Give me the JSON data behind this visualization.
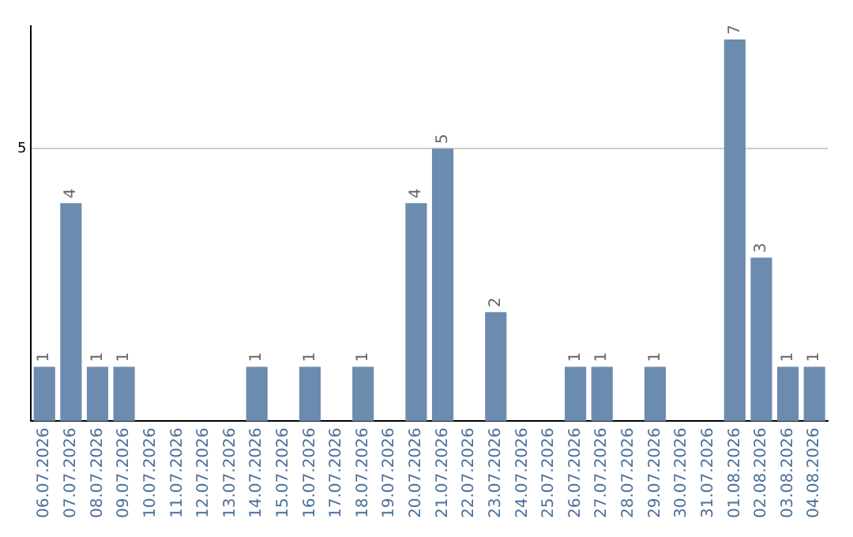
{
  "chart_data": {
    "type": "bar",
    "categories": [
      "06.07.2026",
      "07.07.2026",
      "08.07.2026",
      "09.07.2026",
      "10.07.2026",
      "11.07.2026",
      "12.07.2026",
      "13.07.2026",
      "14.07.2026",
      "15.07.2026",
      "16.07.2026",
      "17.07.2026",
      "18.07.2026",
      "19.07.2026",
      "20.07.2026",
      "21.07.2026",
      "22.07.2026",
      "23.07.2026",
      "24.07.2026",
      "25.07.2026",
      "26.07.2026",
      "27.07.2026",
      "28.07.2026",
      "29.07.2026",
      "30.07.2026",
      "31.07.2026",
      "01.08.2026",
      "02.08.2026",
      "03.08.2026",
      "04.08.2026"
    ],
    "values": [
      1,
      4,
      1,
      1,
      null,
      null,
      null,
      null,
      1,
      null,
      1,
      null,
      1,
      null,
      4,
      5,
      null,
      2,
      null,
      null,
      1,
      1,
      null,
      1,
      null,
      null,
      7,
      3,
      1,
      1
    ],
    "color": "#6b8cae",
    "ylim": [
      0,
      7.25
    ],
    "yticks": [
      5
    ],
    "grid": "y",
    "data_labels": true,
    "legend": false
  }
}
